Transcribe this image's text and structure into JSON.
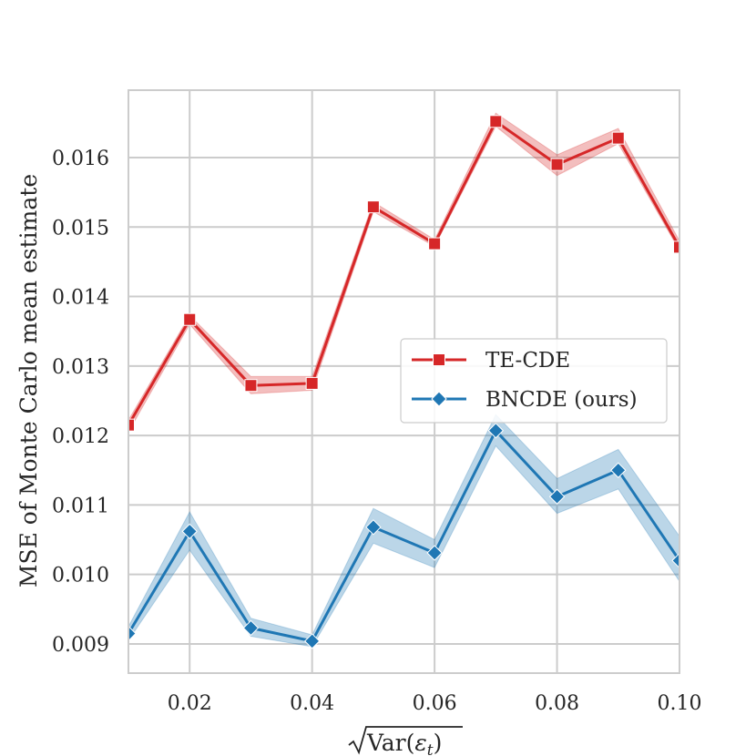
{
  "chart_data": {
    "type": "line",
    "title": "",
    "xlabel": "√Var(εt)",
    "ylabel": "MSE of Monte Carlo mean estimate",
    "x": [
      0.01,
      0.02,
      0.03,
      0.04,
      0.05,
      0.06,
      0.07,
      0.08,
      0.09,
      0.1
    ],
    "xlim": [
      0.01,
      0.1
    ],
    "ylim": [
      0.00858,
      0.01697
    ],
    "xticks": [
      "0.02",
      "0.04",
      "0.06",
      "0.08",
      "0.10"
    ],
    "yticks": [
      "0.009",
      "0.010",
      "0.011",
      "0.012",
      "0.013",
      "0.014",
      "0.015",
      "0.016"
    ],
    "grid": true,
    "legend_position": "center-right",
    "series": [
      {
        "name": "TE-CDE",
        "color": "#d62728",
        "marker": "square",
        "values": [
          0.01215,
          0.01367,
          0.01272,
          0.01275,
          0.01529,
          0.01476,
          0.01652,
          0.0159,
          0.01628,
          0.01471
        ],
        "lower": [
          0.01205,
          0.0136,
          0.0126,
          0.01265,
          0.01522,
          0.01472,
          0.01645,
          0.01574,
          0.0162,
          0.01466
        ],
        "upper": [
          0.01222,
          0.01373,
          0.01285,
          0.01285,
          0.01536,
          0.01482,
          0.01664,
          0.01604,
          0.01642,
          0.0148
        ]
      },
      {
        "name": "BNCDE (ours)",
        "color": "#1f77b4",
        "marker": "diamond",
        "values": [
          0.00915,
          0.01062,
          0.00923,
          0.00904,
          0.01068,
          0.01031,
          0.01207,
          0.01112,
          0.0115,
          0.0102
        ],
        "lower": [
          0.00905,
          0.01035,
          0.00911,
          0.00896,
          0.01045,
          0.0101,
          0.01185,
          0.01088,
          0.01123,
          0.0099
        ],
        "upper": [
          0.00925,
          0.0109,
          0.00937,
          0.00913,
          0.01095,
          0.0105,
          0.0123,
          0.01138,
          0.0118,
          0.01055
        ]
      }
    ]
  }
}
